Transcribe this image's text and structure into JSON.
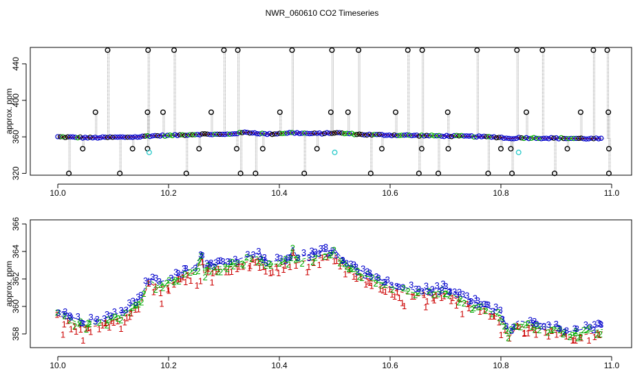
{
  "figure_title": "NWR_060610  CO2 Timeseries",
  "colors": {
    "series_1": "#cc0000",
    "series_2": "#00aa00",
    "series_3": "#0000cc",
    "raw_points": "#000000",
    "flagged": "#33cccc",
    "raw_line": "#999999"
  },
  "chart_data": [
    {
      "type": "scatter",
      "ylabel": "approx. ppm",
      "xlim": [
        10.0,
        11.0
      ],
      "ylim": [
        318,
        458
      ],
      "x_ticks": [
        "10.0",
        "10.2",
        "10.4",
        "10.6",
        "10.8",
        "11.0"
      ],
      "y_ticks": [
        "320",
        "360",
        "400",
        "440"
      ],
      "baseline_x": [
        10.0,
        10.06,
        10.1,
        10.15,
        10.16,
        10.2,
        10.26,
        10.3,
        10.34,
        10.38,
        10.42,
        10.46,
        10.49,
        10.5,
        10.55,
        10.6,
        10.65,
        10.7,
        10.75,
        10.8,
        10.815,
        10.83,
        10.9,
        10.98
      ],
      "baseline_y": [
        360,
        359,
        359.5,
        360,
        361,
        361.5,
        363,
        362.5,
        365,
        363,
        364.5,
        363.5,
        364,
        364.5,
        362.5,
        362,
        361.5,
        361,
        360.5,
        359.5,
        358,
        359,
        358.5,
        358
      ],
      "spikes_high": [
        10.09,
        10.163,
        10.21,
        10.3,
        10.325,
        10.423,
        10.495,
        10.543,
        10.632,
        10.658,
        10.757,
        10.829,
        10.875,
        10.967,
        10.992
      ],
      "spikes_low": [
        10.02,
        10.112,
        10.232,
        10.33,
        10.357,
        10.445,
        10.565,
        10.652,
        10.687,
        10.777,
        10.82,
        10.897,
        10.995
      ],
      "mid_high": [
        [
          10.068,
          387
        ],
        [
          10.162,
          387
        ],
        [
          10.19,
          387
        ],
        [
          10.277,
          387
        ],
        [
          10.401,
          387
        ],
        [
          10.493,
          387
        ],
        [
          10.524,
          387
        ],
        [
          10.61,
          387
        ],
        [
          10.704,
          387
        ],
        [
          10.846,
          387
        ],
        [
          10.944,
          387
        ],
        [
          10.994,
          387
        ]
      ],
      "mid_low": [
        [
          10.045,
          347
        ],
        [
          10.135,
          347
        ],
        [
          10.162,
          347
        ],
        [
          10.255,
          347
        ],
        [
          10.323,
          347
        ],
        [
          10.37,
          347
        ],
        [
          10.468,
          347
        ],
        [
          10.585,
          347
        ],
        [
          10.657,
          347
        ],
        [
          10.705,
          347
        ],
        [
          10.8,
          347
        ],
        [
          10.818,
          347
        ],
        [
          10.92,
          347
        ],
        [
          10.995,
          347
        ]
      ],
      "flagged_points": [
        [
          10.165,
          343
        ],
        [
          10.5,
          343
        ],
        [
          10.832,
          343
        ]
      ]
    },
    {
      "type": "scatter",
      "ylabel": "approx. ppm",
      "xlim": [
        10.0,
        11.0
      ],
      "ylim": [
        357,
        366
      ],
      "x_ticks": [
        "10.0",
        "10.2",
        "10.4",
        "10.6",
        "10.8",
        "11.0"
      ],
      "y_ticks": [
        "358",
        "360",
        "362",
        "364",
        "366"
      ],
      "series": [
        {
          "name": "1",
          "marker": "1"
        },
        {
          "name": "2",
          "marker": "2"
        },
        {
          "name": "3",
          "marker": "3"
        }
      ],
      "trend_x": [
        10.0,
        10.03,
        10.05,
        10.08,
        10.12,
        10.15,
        10.165,
        10.18,
        10.2,
        10.25,
        10.26,
        10.265,
        10.27,
        10.28,
        10.3,
        10.32,
        10.35,
        10.36,
        10.38,
        10.4,
        10.42,
        10.425,
        10.43,
        10.45,
        10.5,
        10.52,
        10.55,
        10.6,
        10.65,
        10.7,
        10.75,
        10.8,
        10.815,
        10.83,
        10.9,
        10.92,
        10.98
      ],
      "trend_y": [
        359.6,
        359.0,
        358.7,
        358.9,
        359.5,
        360.5,
        362.0,
        361.6,
        361.8,
        362.8,
        363.8,
        362.3,
        363.1,
        362.9,
        363.0,
        363.2,
        363.6,
        363.7,
        363.1,
        363.2,
        363.6,
        364.4,
        363.4,
        363.6,
        364.0,
        363.0,
        362.4,
        361.5,
        361.0,
        361.2,
        360.2,
        359.4,
        358.0,
        358.8,
        358.5,
        358.0,
        358.4
      ]
    }
  ]
}
